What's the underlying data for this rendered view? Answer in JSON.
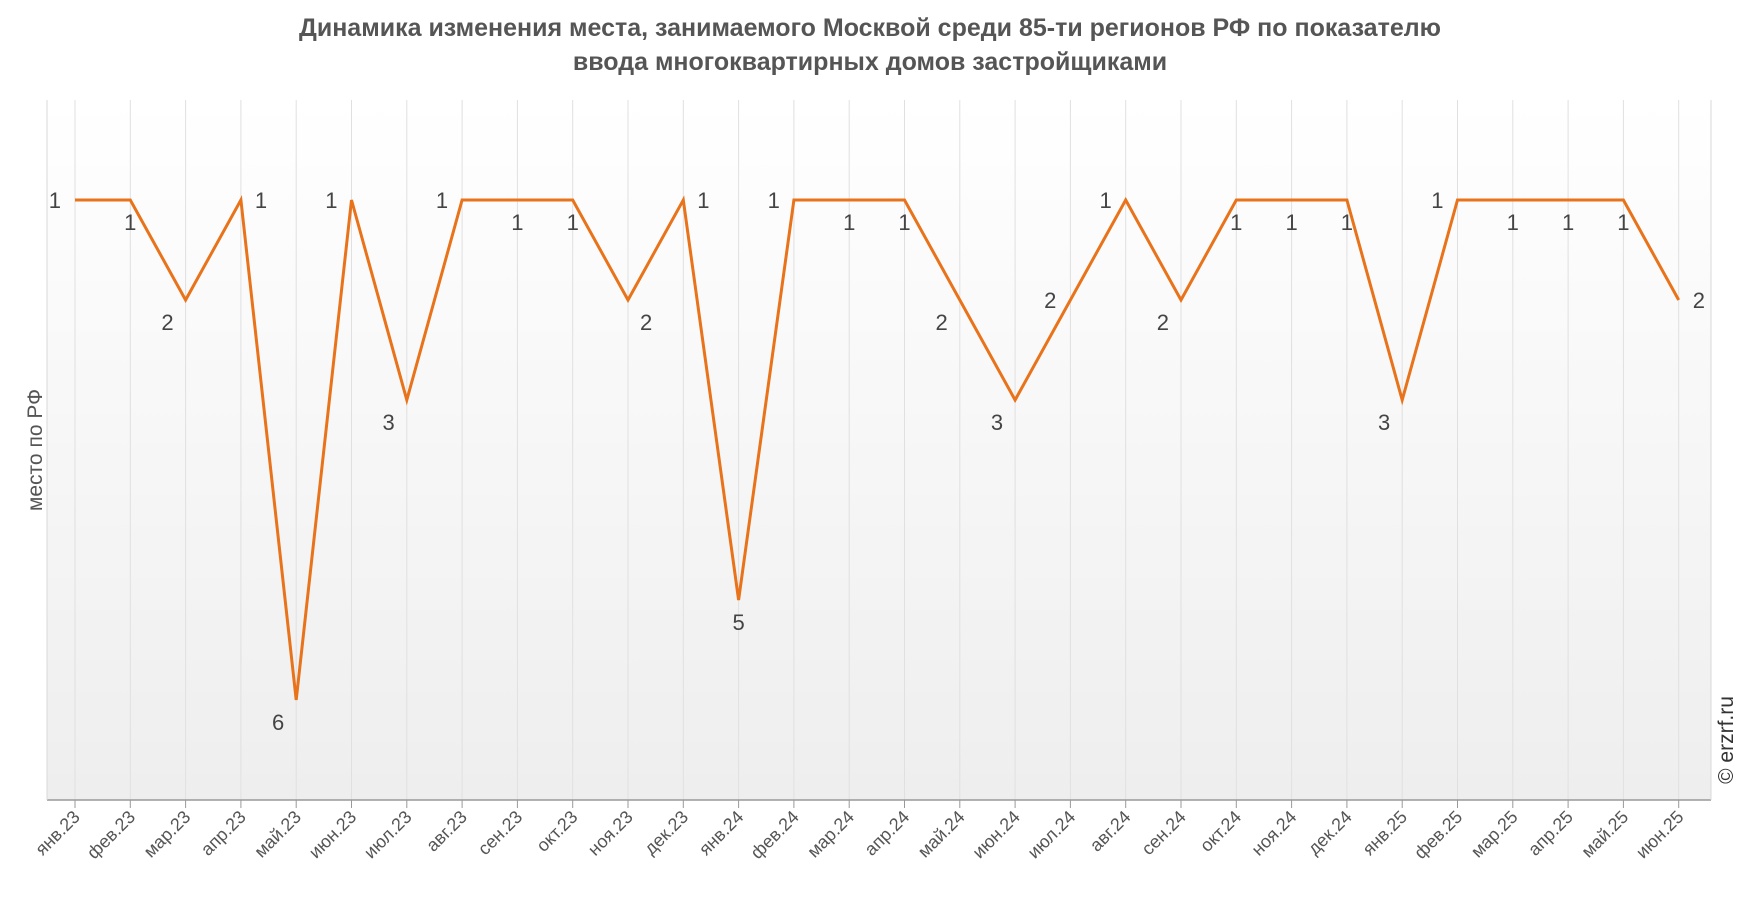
{
  "chart_data": {
    "type": "line",
    "title_line1": "Динамика изменения места, занимаемого Москвой среди 85-ти регионов РФ по показателю",
    "title_line2": "ввода многоквартирных домов застройщиками",
    "xlabel": "",
    "ylabel": "место по РФ",
    "y_inverted": true,
    "ylim": [
      0.0,
      6.0
    ],
    "grid": "vertical",
    "legend": "none",
    "line_color": "#e8731a",
    "grid_color": "#e0e0e0",
    "categories": [
      "янв.23",
      "фев.23",
      "мар.23",
      "апр.23",
      "май.23",
      "июн.23",
      "июл.23",
      "авг.23",
      "сен.23",
      "окт.23",
      "ноя.23",
      "дек.23",
      "янв.24",
      "фев.24",
      "мар.24",
      "апр.24",
      "май.24",
      "июн.24",
      "июл.24",
      "авг.24",
      "сен.24",
      "окт.24",
      "ноя.24",
      "дек.24",
      "янв.25",
      "фев.25",
      "мар.25",
      "апр.25",
      "май.25",
      "июн.25"
    ],
    "series": [
      {
        "values": [
          1,
          1,
          2,
          1,
          6,
          1,
          3,
          1,
          1,
          1,
          2,
          1,
          5,
          1,
          1,
          1,
          2,
          3,
          2,
          1,
          2,
          1,
          1,
          1,
          3,
          1,
          1,
          1,
          1,
          2
        ]
      }
    ],
    "data_labels": [
      "1",
      "1",
      "2",
      "1",
      "6",
      "1",
      "3",
      "1",
      "1",
      "1",
      "2",
      "1",
      "5",
      "1",
      "1",
      "1",
      "2",
      "3",
      "2",
      "1",
      "2",
      "1",
      "1",
      "1",
      "3",
      "1",
      "1",
      "1",
      "1",
      "2"
    ],
    "label_positions": [
      "left",
      "below",
      "below-left",
      "right",
      "below-left",
      "left",
      "below-left",
      "left",
      "below",
      "below",
      "below-right",
      "right",
      "below",
      "left",
      "below",
      "below",
      "below-left",
      "below-left",
      "left",
      "left",
      "below-left",
      "below",
      "below",
      "below",
      "below-left",
      "left",
      "below",
      "below",
      "below",
      "right"
    ]
  },
  "copyright": "© erzrf.ru"
}
